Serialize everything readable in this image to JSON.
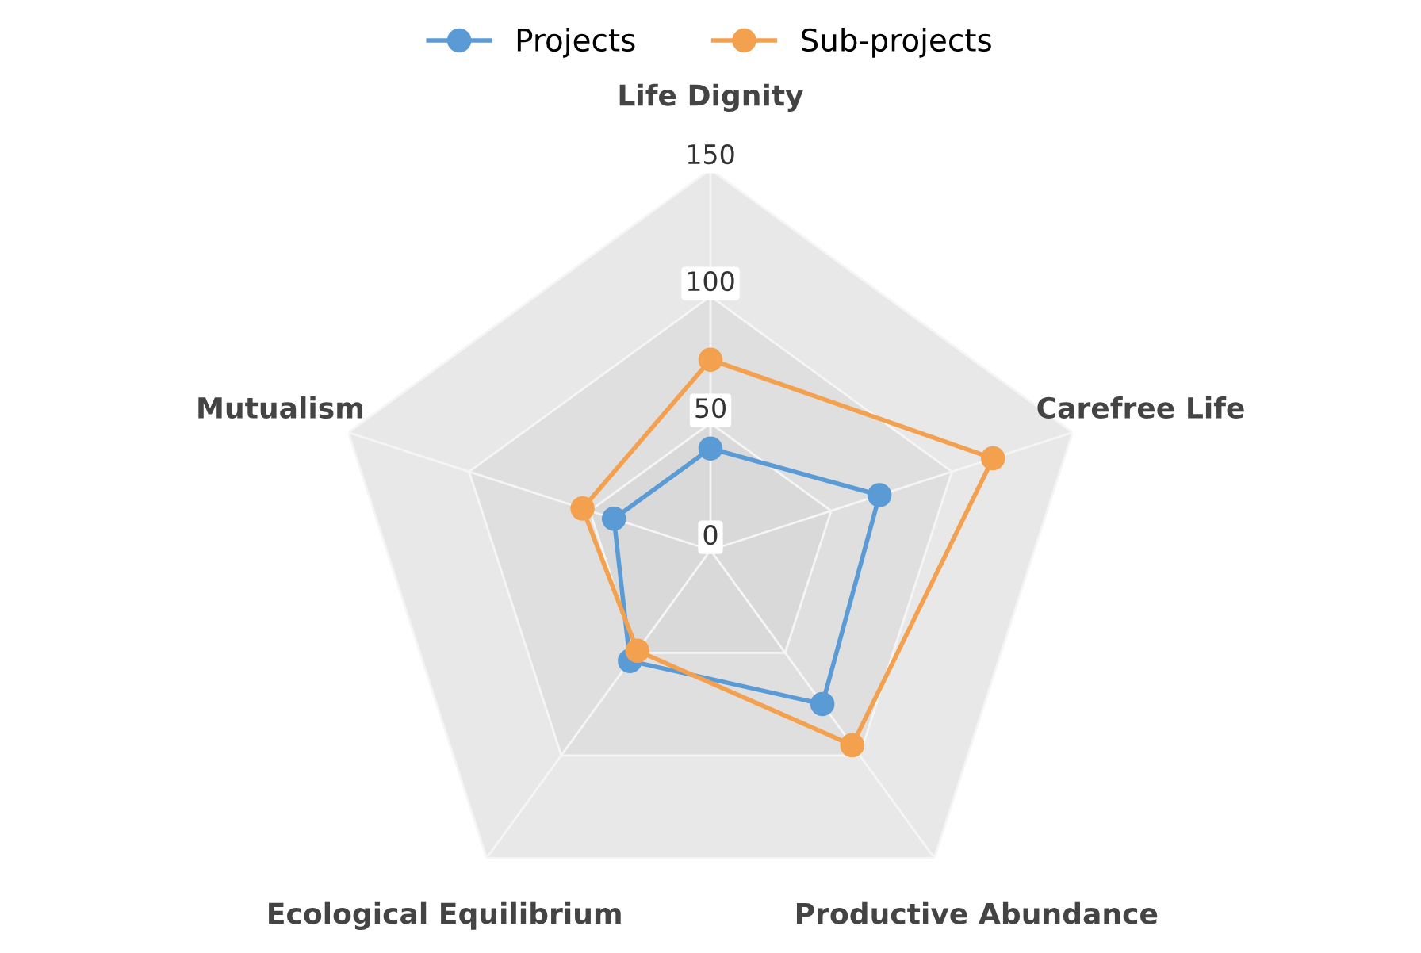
{
  "chart_data": {
    "type": "radar",
    "categories": [
      "Life Dignity",
      "Carefree Life",
      "Productive Abundance",
      "Ecological Equilibrium",
      "Mutualism"
    ],
    "ylim": [
      0,
      150
    ],
    "yticks": [
      0,
      50,
      100,
      150
    ],
    "grid": true,
    "legend": "top",
    "marker": "circle",
    "line_style": "solid",
    "series": [
      {
        "name": "Projects",
        "color": "#5b9bd5",
        "values": [
          40,
          70,
          75,
          54,
          40
        ]
      },
      {
        "name": "Sub-projects",
        "color": "#f4a14f",
        "values": [
          75,
          117,
          95,
          49,
          53
        ]
      }
    ]
  }
}
